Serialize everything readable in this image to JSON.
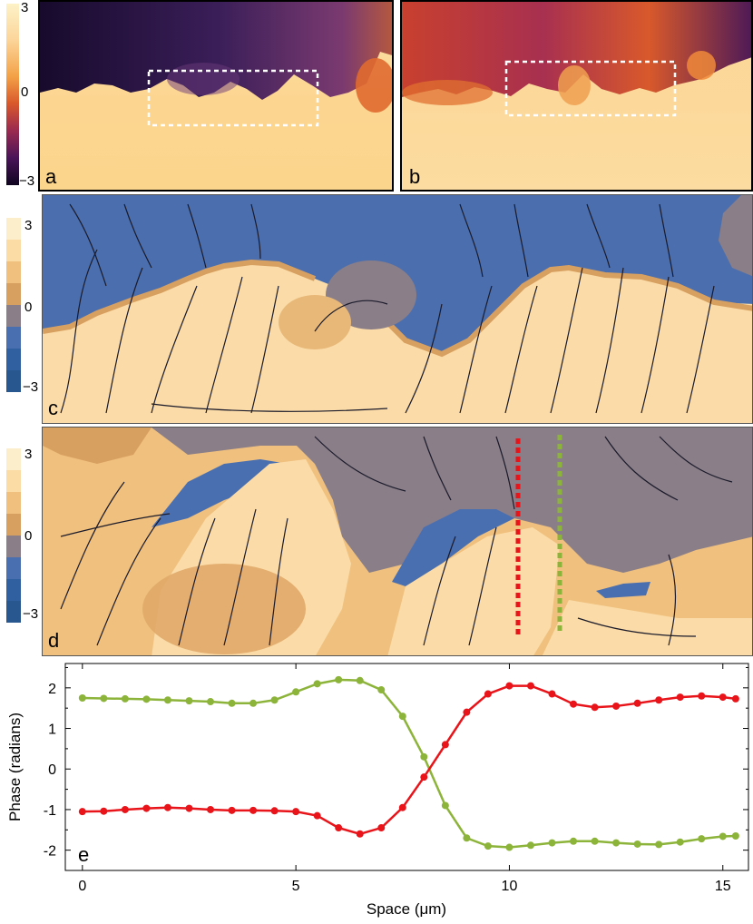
{
  "panels": {
    "a": {
      "label": "a"
    },
    "b": {
      "label": "b"
    },
    "c": {
      "label": "c"
    },
    "d": {
      "label": "d"
    },
    "e": {
      "label": "e"
    }
  },
  "colorbar_top": {
    "ticks": [
      "3",
      "0",
      "−3"
    ]
  },
  "colorbar_c": {
    "ticks": [
      "3",
      "0",
      "−3"
    ]
  },
  "colorbar_d": {
    "ticks": [
      "3",
      "0",
      "−3"
    ]
  },
  "colors": {
    "inferno_dark": "#1a0a2e",
    "inferno_purple": "#4a2460",
    "inferno_orange": "#e8742a",
    "inferno_light": "#fde6b0",
    "phase_blue": "#4a6fb0",
    "phase_gray": "#8a7e88",
    "phase_tan": "#e8b878",
    "phase_light": "#fbdda8",
    "series_red": "#e8141a",
    "series_green": "#8db43a"
  },
  "chart_data": {
    "type": "line",
    "xlabel": "Space (μm)",
    "ylabel": "Phase (radians)",
    "xlim": [
      -0.4,
      15.6
    ],
    "ylim": [
      -2.5,
      2.6
    ],
    "xticks": [
      "0",
      "5",
      "10",
      "15"
    ],
    "yticks": [
      "2",
      "1",
      "0",
      "-1",
      "-2"
    ],
    "series": [
      {
        "color": "#8db43a",
        "x": [
          0,
          0.5,
          1,
          1.5,
          2,
          2.5,
          3,
          3.5,
          4,
          4.5,
          5,
          5.5,
          6,
          6.5,
          7,
          7.5,
          8,
          8.5,
          9,
          9.5,
          10,
          10.5,
          11,
          11.5,
          12,
          12.5,
          13,
          13.5,
          14,
          14.5,
          15,
          15.3
        ],
        "y": [
          1.75,
          1.74,
          1.73,
          1.72,
          1.7,
          1.68,
          1.66,
          1.62,
          1.62,
          1.7,
          1.9,
          2.1,
          2.2,
          2.18,
          1.95,
          1.3,
          0.3,
          -0.9,
          -1.7,
          -1.9,
          -1.93,
          -1.88,
          -1.82,
          -1.78,
          -1.78,
          -1.82,
          -1.85,
          -1.86,
          -1.8,
          -1.72,
          -1.66,
          -1.65
        ]
      },
      {
        "color": "#e8141a",
        "x": [
          0,
          0.5,
          1,
          1.5,
          2,
          2.5,
          3,
          3.5,
          4,
          4.5,
          5,
          5.5,
          6,
          6.5,
          7,
          7.5,
          8,
          8.5,
          9,
          9.5,
          10,
          10.5,
          11,
          11.5,
          12,
          12.5,
          13,
          13.5,
          14,
          14.5,
          15,
          15.3
        ],
        "y": [
          -1.05,
          -1.04,
          -1.0,
          -0.97,
          -0.95,
          -0.97,
          -1.0,
          -1.02,
          -1.02,
          -1.03,
          -1.05,
          -1.15,
          -1.45,
          -1.6,
          -1.45,
          -0.95,
          -0.2,
          0.6,
          1.4,
          1.85,
          2.05,
          2.05,
          1.85,
          1.6,
          1.52,
          1.55,
          1.62,
          1.7,
          1.77,
          1.8,
          1.77,
          1.73
        ]
      }
    ]
  }
}
